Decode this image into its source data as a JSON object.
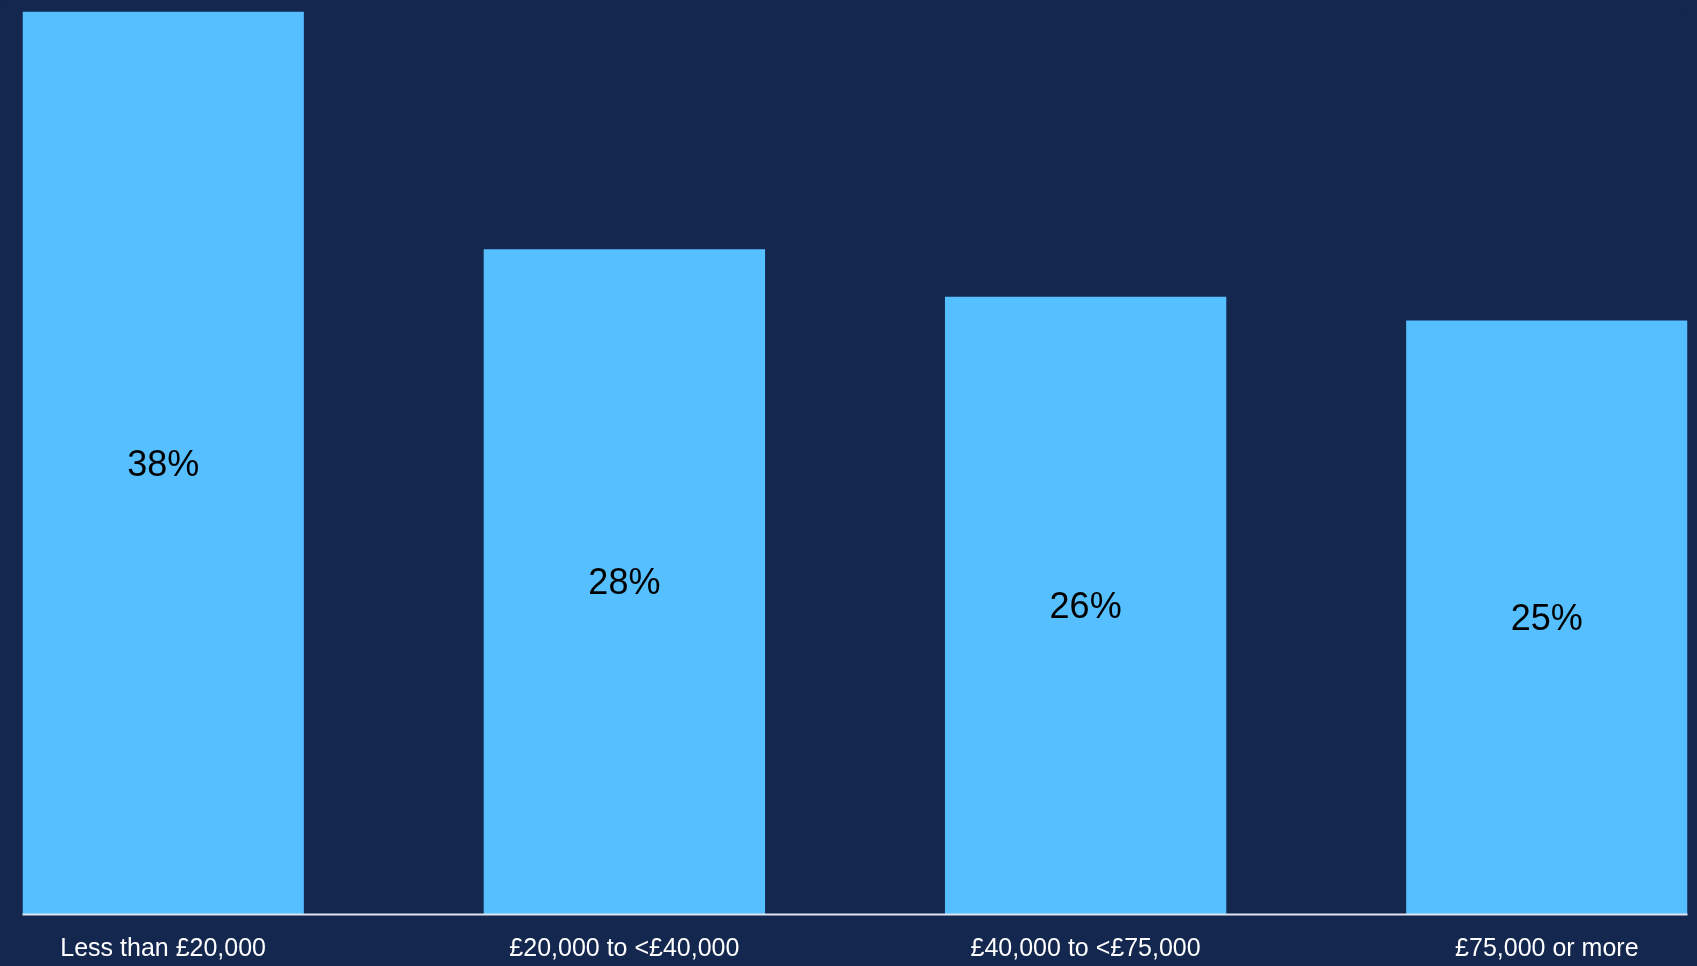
{
  "chart_data": {
    "type": "bar",
    "categories": [
      "Less than £20,000",
      "£20,000 to <£40,000",
      "£40,000 to <£75,000",
      "£75,000 or more"
    ],
    "values": [
      38,
      28,
      26,
      25
    ],
    "value_labels": [
      "38%",
      "28%",
      "26%",
      "25%"
    ],
    "color": "#55bfff",
    "tick_labels": "x"
  }
}
